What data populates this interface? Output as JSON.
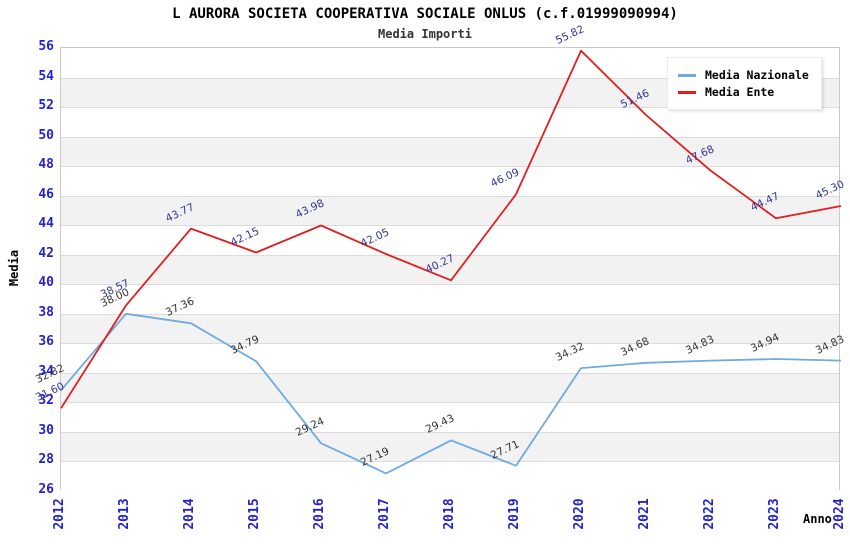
{
  "title": "L AURORA SOCIETA COOPERATIVA SOCIALE ONLUS (c.f.01999090994)",
  "subtitle": "Media Importi",
  "ylabel": "Media",
  "xlabel": "Anno",
  "colors": {
    "axis_tick": "#2323cc",
    "grid_band": "#f2f2f2",
    "gridline": "#dcdcdc",
    "plot_border": "#c9c9c9"
  },
  "chart_data": {
    "type": "line",
    "x": [
      2012,
      2013,
      2014,
      2015,
      2016,
      2017,
      2018,
      2019,
      2020,
      2021,
      2022,
      2023,
      2024
    ],
    "series": [
      {
        "name": "Media Nazionale",
        "color": "#6fabe0",
        "label_color": "#333333",
        "values": [
          32.82,
          38.0,
          37.36,
          34.79,
          29.24,
          27.19,
          29.43,
          27.71,
          34.32,
          34.68,
          34.83,
          34.94,
          34.83
        ]
      },
      {
        "name": "Media Ente",
        "color": "#e02020",
        "label_color": "#333399",
        "values": [
          31.6,
          38.57,
          43.77,
          42.15,
          43.98,
          42.05,
          40.27,
          46.09,
          55.82,
          51.46,
          47.68,
          44.47,
          45.3
        ]
      }
    ],
    "ylim": [
      26,
      56
    ],
    "ytick_step": 2,
    "grid": "horizontal-bands",
    "legend_position": "top-right",
    "title": "L AURORA SOCIETA COOPERATIVA SOCIALE ONLUS (c.f.01999090994)",
    "subtitle": "Media Importi",
    "xlabel": "Anno",
    "ylabel": "Media"
  }
}
